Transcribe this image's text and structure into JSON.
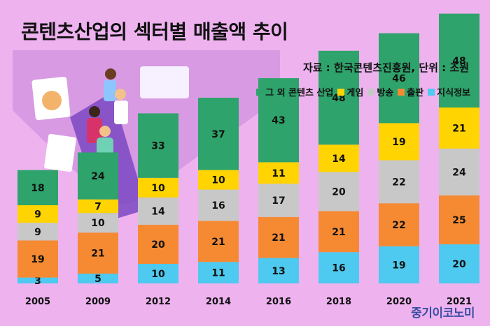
{
  "title": "콘텐츠산업의 섹터별 매출액 추이",
  "source": "자료 : 한국콘텐츠진흥원, 단위 : 조원",
  "brand": "중기이코노미",
  "colors": {
    "background": "#eeb2ef",
    "illustration_panel": "#d79ae3",
    "other": "#2ea36b",
    "game": "#ffd400",
    "broadcast": "#c8c8c8",
    "publishing": "#f58a33",
    "knowledge": "#4ec9ef"
  },
  "chart_data": {
    "type": "bar",
    "stacked": true,
    "categories": [
      "2005",
      "2009",
      "2012",
      "2014",
      "2016",
      "2018",
      "2020",
      "2021"
    ],
    "series": [
      {
        "name": "지식정보",
        "color": "#4ec9ef",
        "values": [
          3,
          5,
          10,
          11,
          13,
          16,
          19,
          20
        ]
      },
      {
        "name": "출판",
        "color": "#f58a33",
        "values": [
          19,
          21,
          20,
          21,
          21,
          21,
          22,
          25
        ]
      },
      {
        "name": "방송",
        "color": "#c8c8c8",
        "values": [
          9,
          10,
          14,
          16,
          17,
          20,
          22,
          24
        ]
      },
      {
        "name": "게임",
        "color": "#ffd400",
        "values": [
          9,
          7,
          10,
          10,
          11,
          14,
          19,
          21
        ]
      },
      {
        "name": "그 외 콘텐츠 산업",
        "color": "#2ea36b",
        "values": [
          18,
          24,
          33,
          37,
          43,
          48,
          46,
          48
        ]
      }
    ],
    "legend_order": [
      "그 외 콘텐츠 산업",
      "게임",
      "방송",
      "출판",
      "지식정보"
    ],
    "legend_position": "top-right",
    "grid": false
  }
}
